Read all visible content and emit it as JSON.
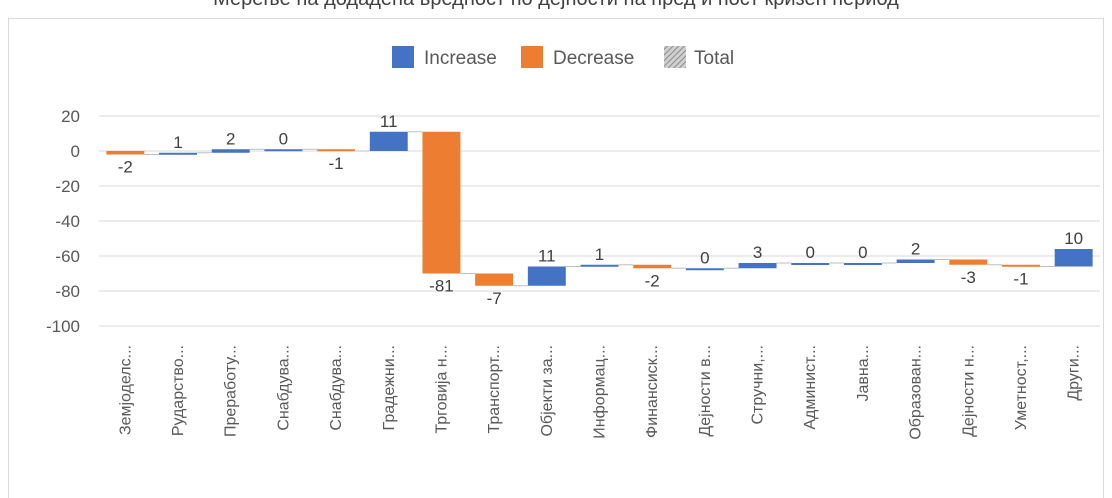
{
  "page": {
    "title": "Мерење на додадена вредност по дејности на пред и пост кризен период"
  },
  "legend": {
    "items": [
      {
        "label": "Increase",
        "color": "#4472c4"
      },
      {
        "label": "Decrease",
        "color": "#ed7d31"
      },
      {
        "label": "Total",
        "color": "#a5a5a5"
      }
    ]
  },
  "chart_data": {
    "type": "bar",
    "variant": "waterfall",
    "title": "Мерење на додадена вредност по дејности на пред и пост кризен период",
    "categories": [
      "Земјоделс...",
      "Рударство...",
      "Преработу...",
      "Снабдува...",
      "Снабдува...",
      "Градежни...",
      "Трговија н...",
      "Транспорт...",
      "Објекти за...",
      "Информац...",
      "Финансиск...",
      "Дејности в...",
      "Стручни,...",
      "Админист...",
      "Јавна...",
      "Образован...",
      "Дејности н...",
      "Уметност,...",
      "Други..."
    ],
    "values": [
      -2,
      1,
      2,
      0,
      -1,
      11,
      -81,
      -7,
      11,
      1,
      -2,
      0,
      3,
      0,
      0,
      2,
      -3,
      -1,
      10
    ],
    "data_labels": [
      "-2",
      "1",
      "2",
      "0",
      "-1",
      "11",
      "-81",
      "-7",
      "11",
      "1",
      "-2",
      "0",
      "3",
      "0",
      "0",
      "2",
      "-3",
      "-1",
      "10"
    ],
    "ylim": [
      -100,
      20
    ],
    "yticks": [
      20,
      0,
      -20,
      -40,
      -60,
      -80,
      -100
    ],
    "grid": true,
    "legend_position": "top",
    "colors": {
      "increase": "#4472c4",
      "decrease": "#ed7d31",
      "total": "#a5a5a5"
    }
  }
}
